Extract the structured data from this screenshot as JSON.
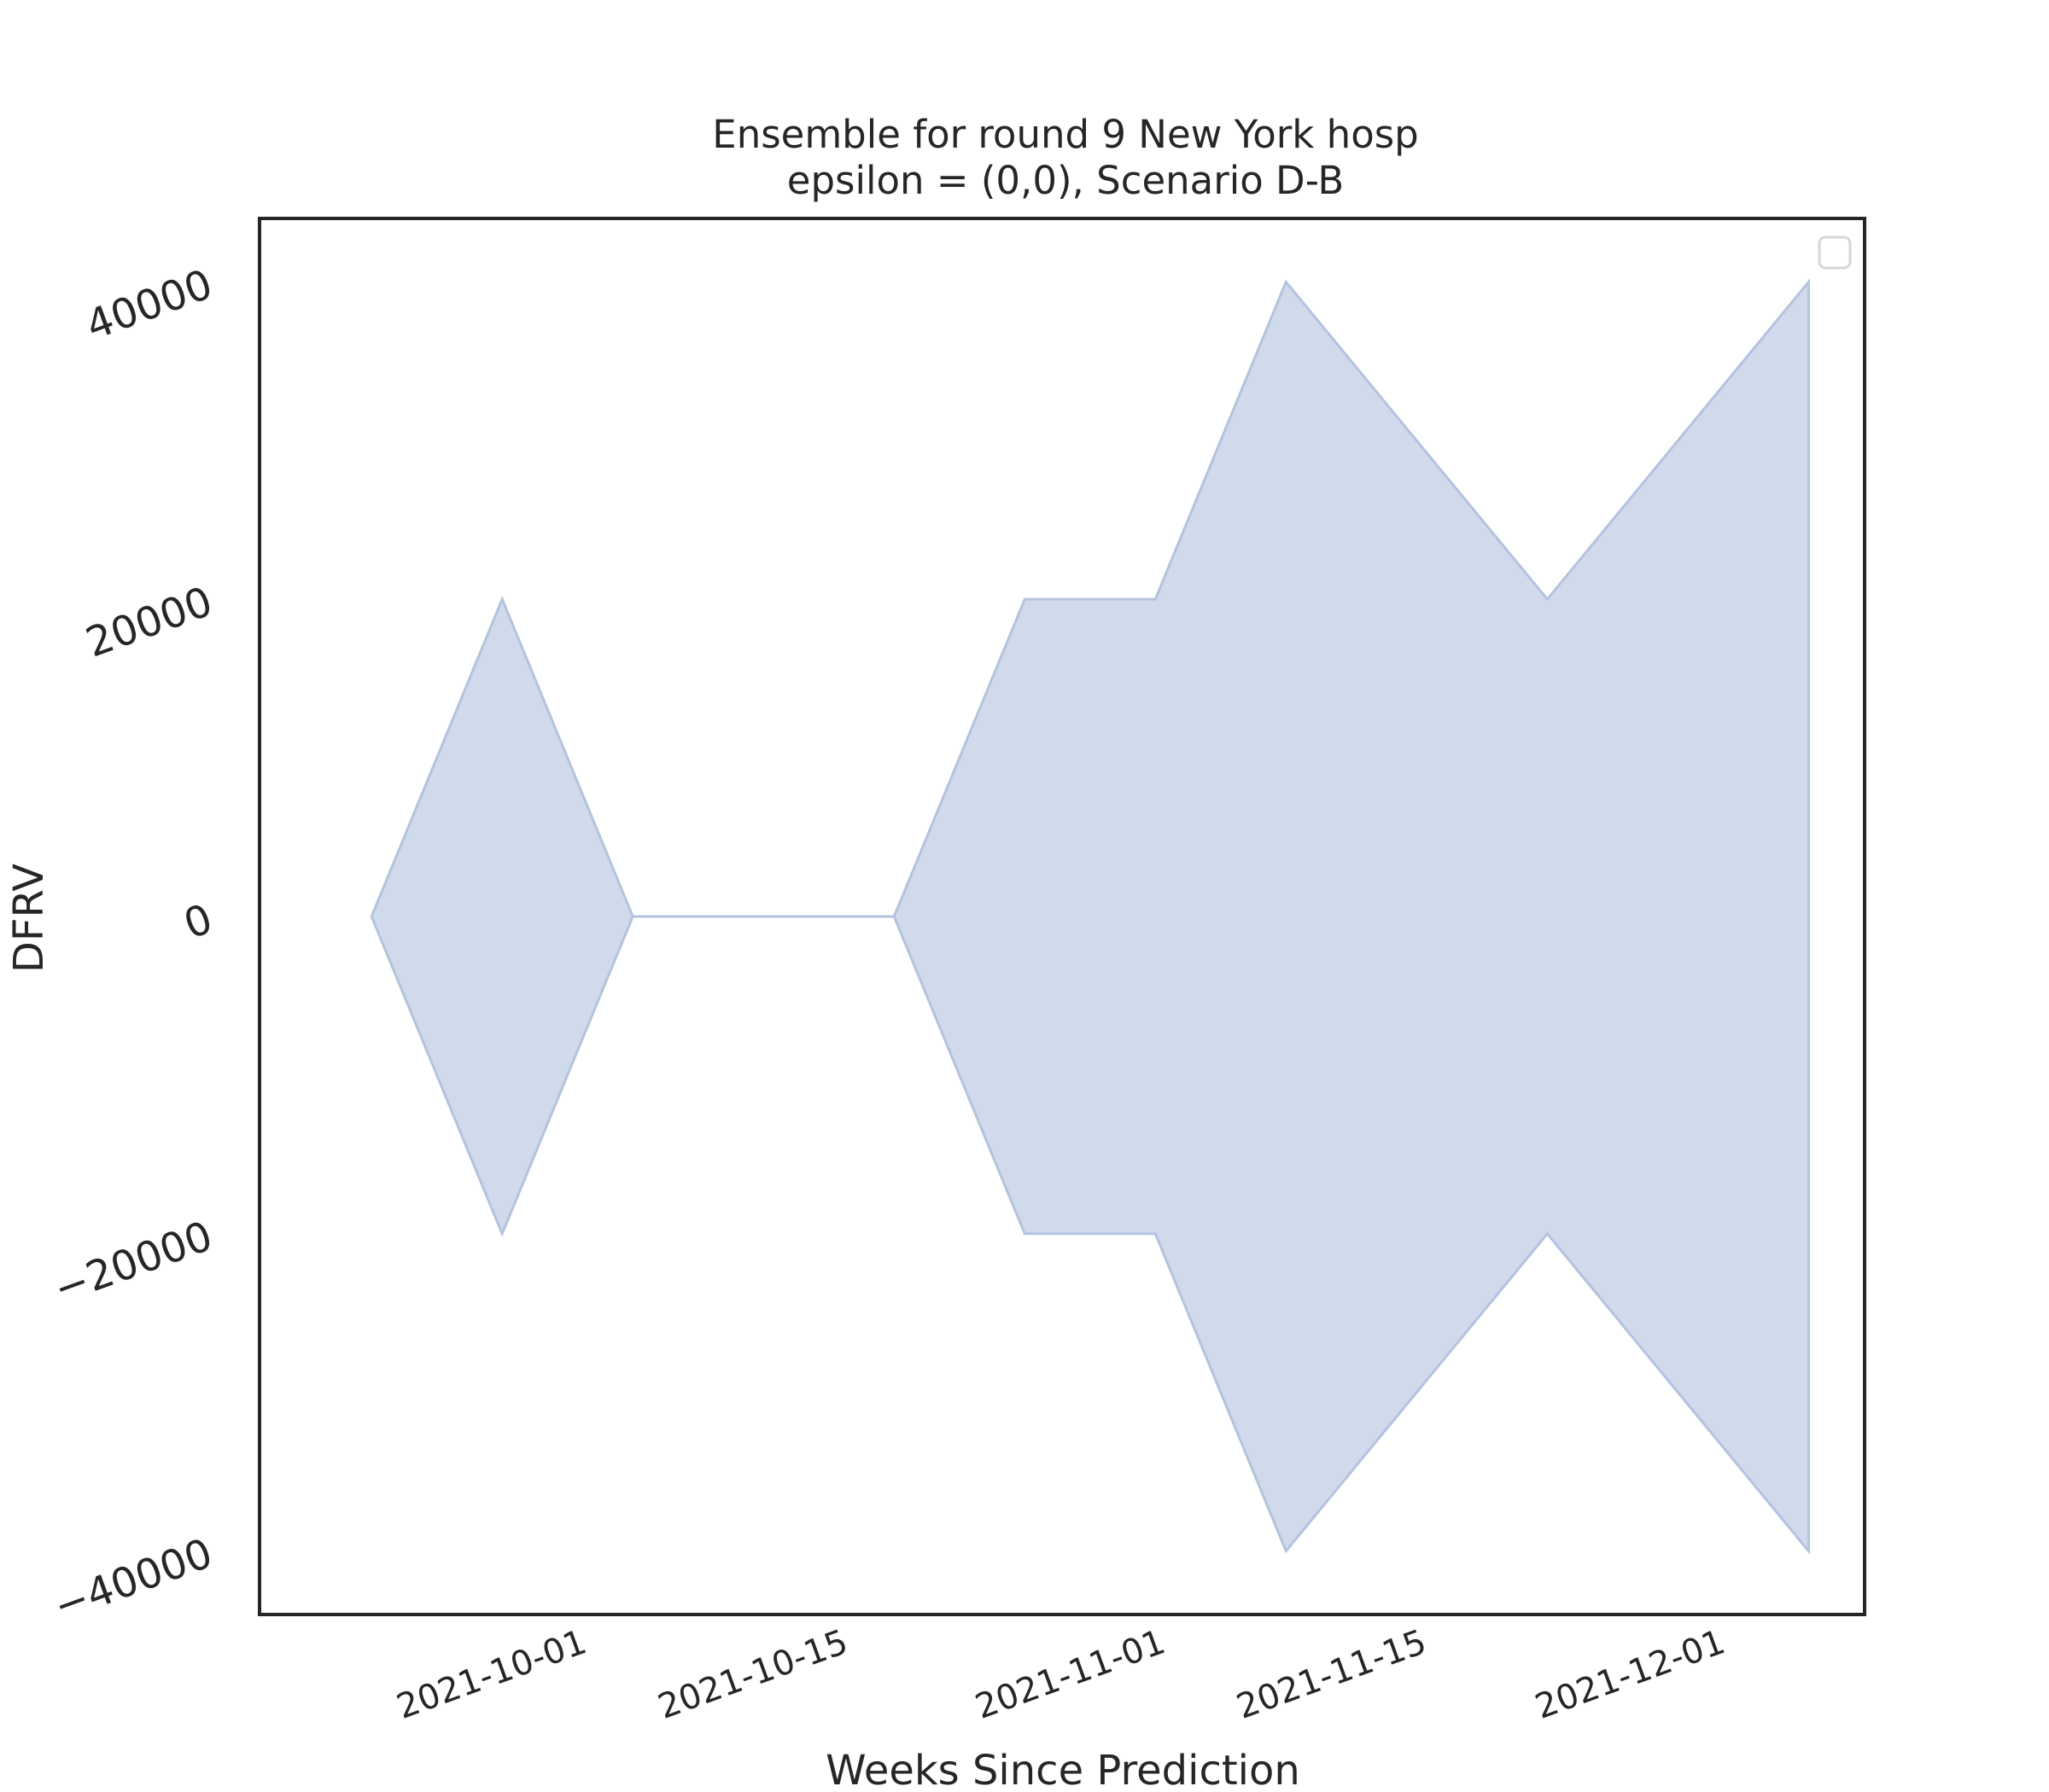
{
  "chart_data": {
    "type": "area",
    "title": "Ensemble for round 9 New York hosp",
    "subtitle": "epsilon = (0,0), Scenario D-B",
    "xlabel": "Weeks Since Prediction",
    "ylabel": "DFRV",
    "x": [
      "2021-09-20",
      "2021-09-27",
      "2021-10-04",
      "2021-10-11",
      "2021-10-18",
      "2021-10-25",
      "2021-11-01",
      "2021-11-08",
      "2021-11-15",
      "2021-11-22",
      "2021-11-29",
      "2021-12-06"
    ],
    "series": [
      {
        "upper": [
          0,
          20000,
          0,
          0,
          0,
          20000,
          20000,
          40000,
          30000,
          20000,
          30000,
          40000
        ],
        "lower": [
          0,
          -20000,
          0,
          0,
          0,
          -20000,
          -20000,
          -40000,
          -30000,
          -20000,
          -30000,
          -40000
        ]
      }
    ],
    "xlim": [
      "2021-09-14",
      "2021-12-09"
    ],
    "ylim": [
      -44000,
      44000
    ],
    "yticks": [
      40000,
      20000,
      0,
      -20000,
      -40000
    ],
    "ytick_labels": [
      "40000",
      "20000",
      "0",
      "−20000",
      "−40000"
    ],
    "xticks": [
      "2021-10-01",
      "2021-10-15",
      "2021-11-01",
      "2021-11-15",
      "2021-12-01"
    ],
    "grid": false,
    "legend": "top-right",
    "fill_color": "#d1daeb",
    "edge_color": "#b3c3df",
    "frame_color": "#262626"
  }
}
